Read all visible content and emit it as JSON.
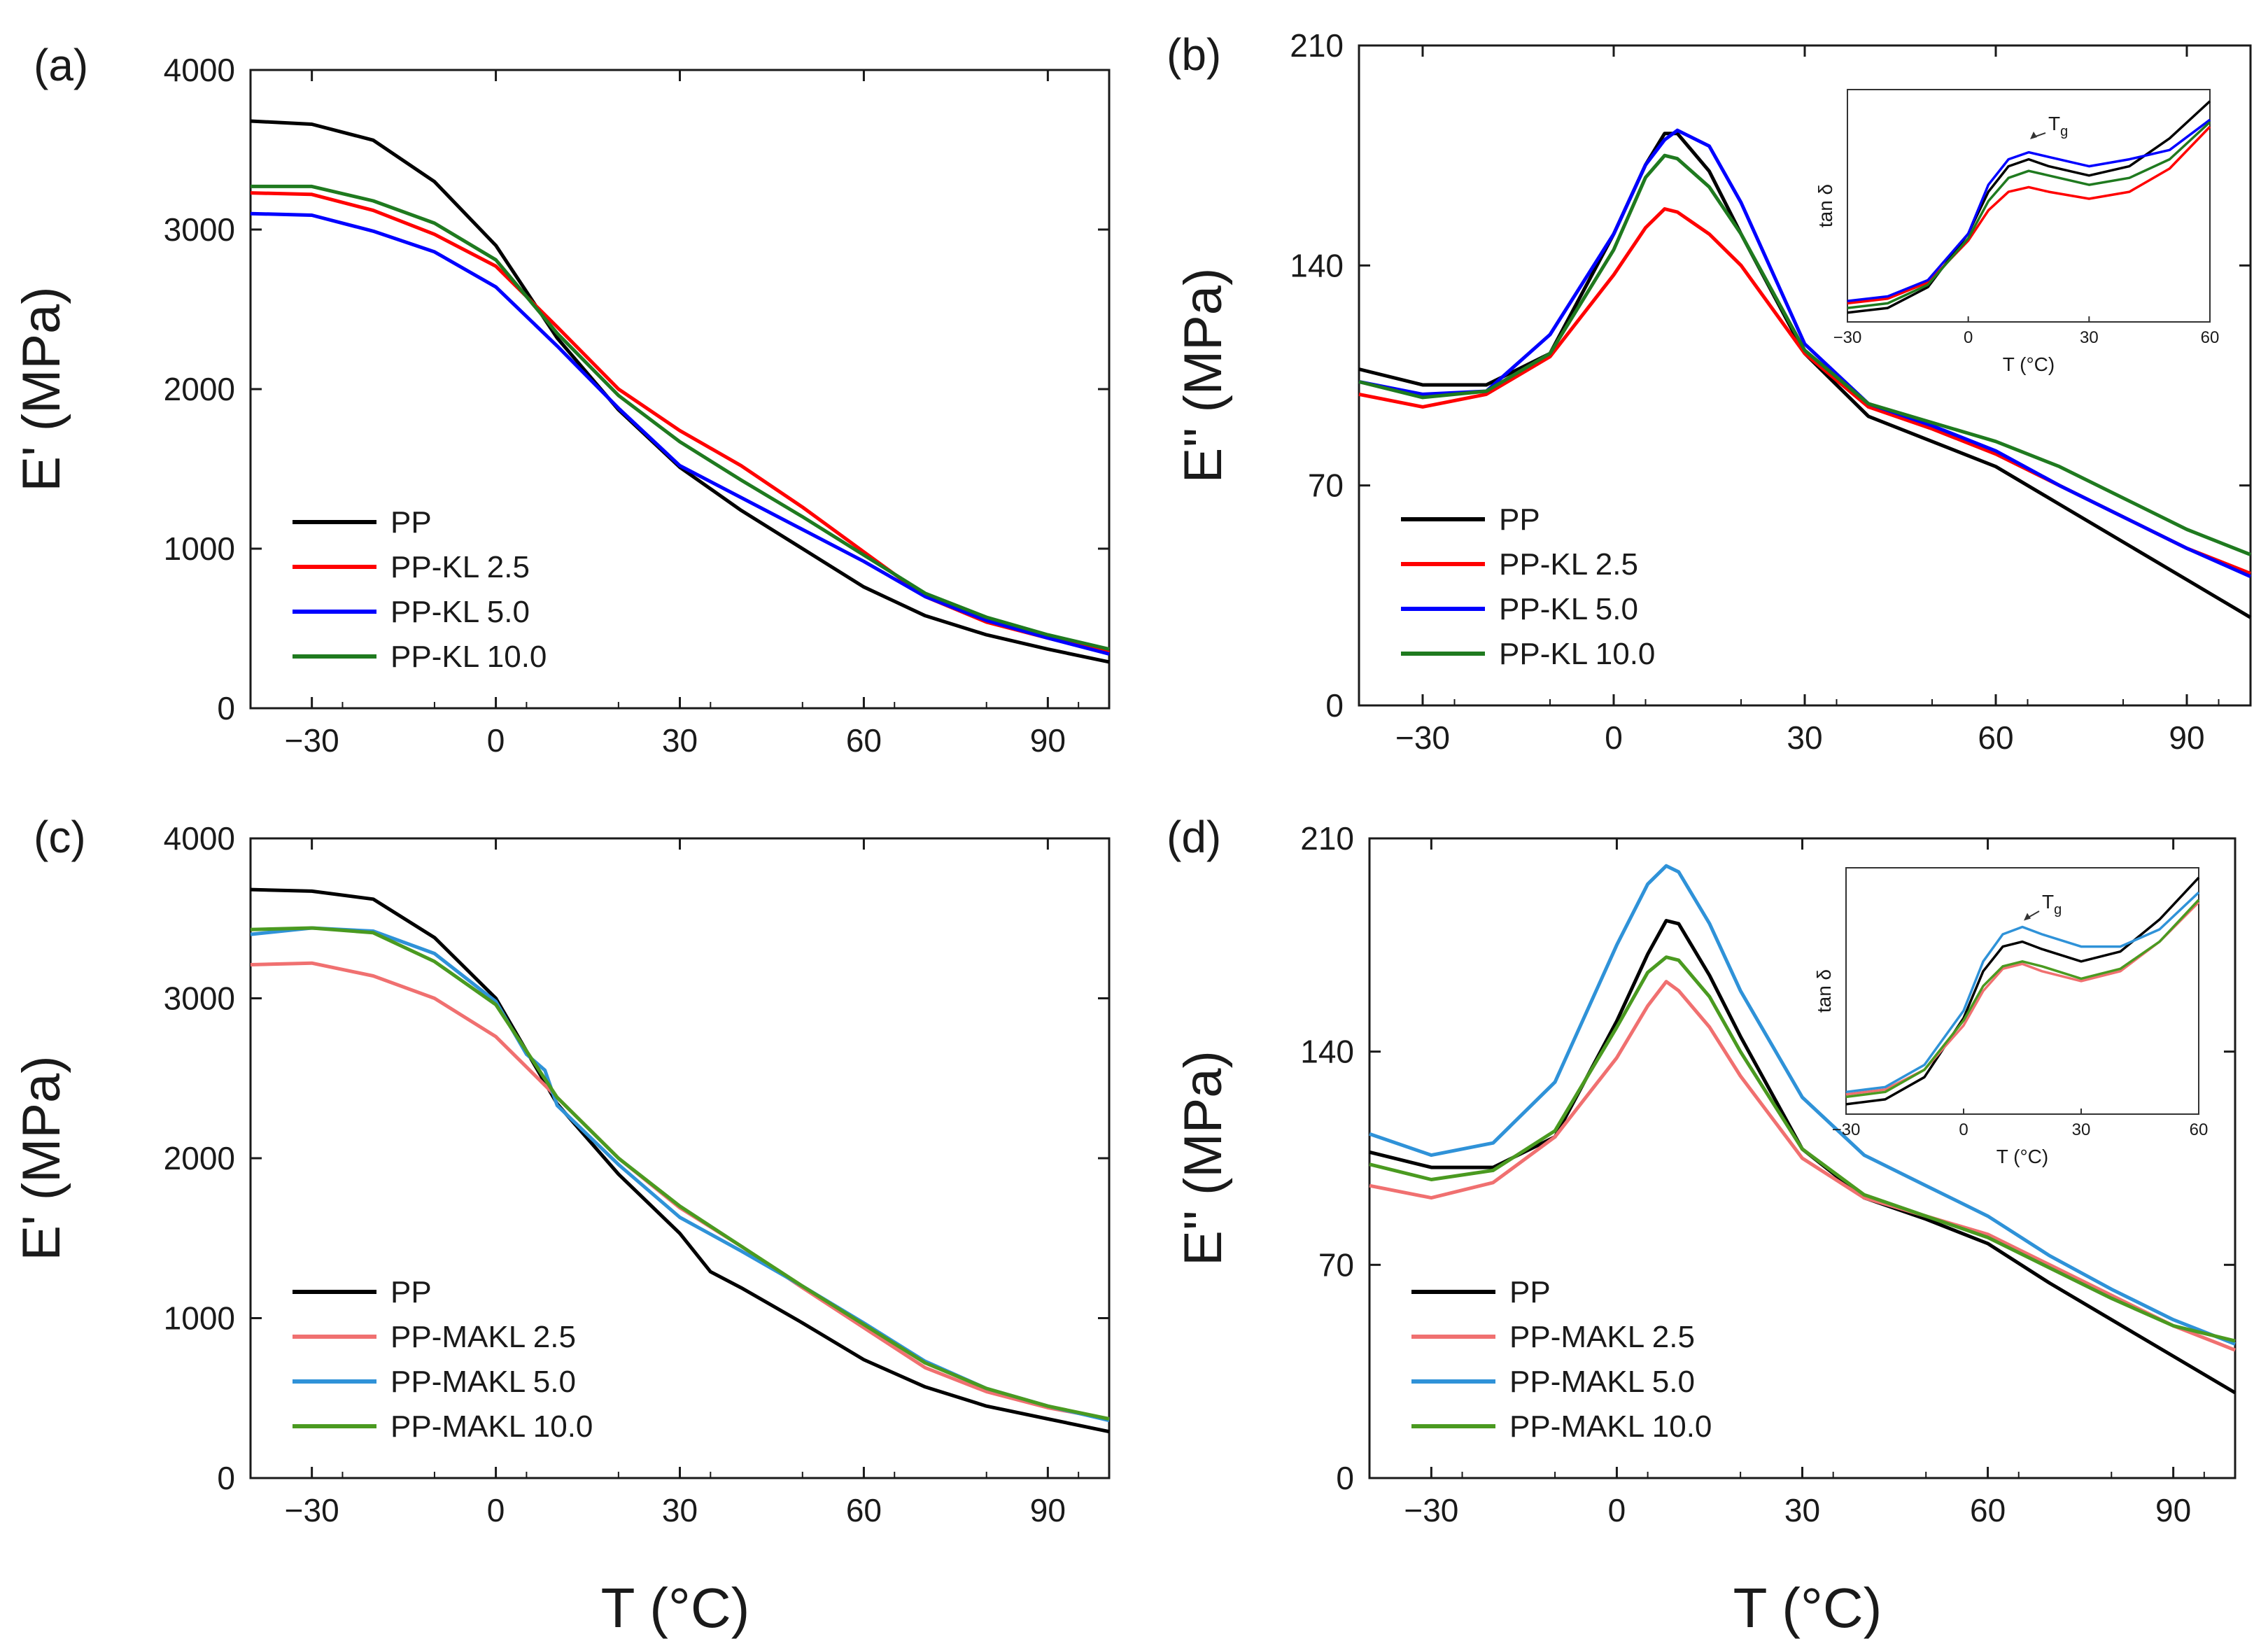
{
  "chart_data": [
    {
      "type": "line",
      "panel": "(a)",
      "ylabel": "E' (MPa)",
      "xlabel": "",
      "xlim": [
        -40,
        100
      ],
      "ylim": [
        0,
        4000
      ],
      "xticks": [
        -30,
        0,
        30,
        60,
        90
      ],
      "yticks": [
        0,
        1000,
        2000,
        3000,
        4000
      ],
      "legend_position": "bottom-left",
      "series": [
        {
          "name": "PP",
          "color": "#000000",
          "x": [
            -40,
            -30,
            -20,
            -10,
            0,
            10,
            20,
            30,
            40,
            50,
            60,
            70,
            80,
            90,
            100
          ],
          "y": [
            3680,
            3660,
            3560,
            3300,
            2900,
            2320,
            1870,
            1510,
            1240,
            1000,
            760,
            580,
            460,
            370,
            290
          ]
        },
        {
          "name": "PP-KL 2.5",
          "color": "#ff0000",
          "x": [
            -40,
            -30,
            -20,
            -10,
            0,
            10,
            20,
            30,
            40,
            50,
            60,
            70,
            80,
            90,
            100
          ],
          "y": [
            3230,
            3220,
            3120,
            2970,
            2770,
            2390,
            2000,
            1740,
            1520,
            1260,
            980,
            700,
            540,
            440,
            350
          ]
        },
        {
          "name": "PP-KL 5.0",
          "color": "#0000ff",
          "x": [
            -40,
            -30,
            -20,
            -10,
            0,
            10,
            20,
            30,
            40,
            50,
            60,
            70,
            80,
            90,
            100
          ],
          "y": [
            3100,
            3090,
            2990,
            2860,
            2640,
            2270,
            1880,
            1520,
            1320,
            1120,
            920,
            700,
            550,
            440,
            340
          ]
        },
        {
          "name": "PP-KL 10.0",
          "color": "#1f7a1f",
          "x": [
            -40,
            -30,
            -20,
            -10,
            0,
            10,
            20,
            30,
            40,
            50,
            60,
            70,
            80,
            90,
            100
          ],
          "y": [
            3270,
            3270,
            3180,
            3040,
            2810,
            2350,
            1960,
            1670,
            1430,
            1200,
            960,
            720,
            570,
            460,
            370
          ]
        }
      ]
    },
    {
      "type": "line",
      "panel": "(b)",
      "ylabel": "E'' (MPa)",
      "xlabel": "",
      "xlim": [
        -40,
        100
      ],
      "ylim": [
        0,
        210
      ],
      "xticks": [
        -30,
        0,
        30,
        60,
        90
      ],
      "yticks": [
        0,
        70,
        140,
        210
      ],
      "legend_position": "bottom-left",
      "series": [
        {
          "name": "PP",
          "color": "#000000",
          "x": [
            -40,
            -30,
            -20,
            -10,
            0,
            5,
            8,
            10,
            15,
            20,
            30,
            40,
            50,
            60,
            70,
            80,
            90,
            100
          ],
          "y": [
            107,
            102,
            102,
            112,
            150,
            172,
            182,
            182,
            170,
            150,
            112,
            92,
            84,
            76,
            64,
            52,
            40,
            28
          ]
        },
        {
          "name": "PP-KL 2.5",
          "color": "#ff0000",
          "x": [
            -40,
            -30,
            -20,
            -10,
            0,
            5,
            8,
            10,
            15,
            20,
            30,
            40,
            50,
            60,
            70,
            80,
            90,
            100
          ],
          "y": [
            99,
            95,
            99,
            111,
            137,
            152,
            158,
            157,
            150,
            140,
            112,
            95,
            88,
            80,
            70,
            60,
            50,
            42
          ]
        },
        {
          "name": "PP-KL 5.0",
          "color": "#0000ff",
          "x": [
            -40,
            -30,
            -20,
            -10,
            0,
            5,
            8,
            10,
            15,
            20,
            30,
            40,
            50,
            60,
            70,
            80,
            90,
            100
          ],
          "y": [
            103,
            99,
            100,
            118,
            150,
            172,
            180,
            183,
            178,
            160,
            115,
            96,
            89,
            81,
            70,
            60,
            50,
            41
          ]
        },
        {
          "name": "PP-KL 10.0",
          "color": "#1f7a1f",
          "x": [
            -40,
            -30,
            -20,
            -10,
            0,
            5,
            8,
            10,
            15,
            20,
            30,
            40,
            50,
            60,
            70,
            80,
            90,
            100
          ],
          "y": [
            103,
            98,
            100,
            112,
            145,
            168,
            175,
            174,
            165,
            150,
            113,
            96,
            90,
            84,
            76,
            66,
            56,
            48
          ]
        }
      ],
      "inset": {
        "ylabel": "tan δ",
        "xlabel": "T (°C)",
        "xlim": [
          -30,
          60
        ],
        "xticks": [
          -30,
          0,
          30,
          60
        ],
        "annotation": "T",
        "annotation_sub": "g",
        "series": [
          {
            "name": "PP",
            "color": "#000000",
            "x": [
              -30,
              -20,
              -10,
              0,
              5,
              10,
              15,
              20,
              30,
              40,
              50,
              60
            ],
            "y": [
              0.04,
              0.06,
              0.15,
              0.38,
              0.56,
              0.67,
              0.7,
              0.67,
              0.63,
              0.67,
              0.79,
              0.95
            ]
          },
          {
            "name": "PP-KL 2.5",
            "color": "#ff0000",
            "x": [
              -30,
              -20,
              -10,
              0,
              5,
              10,
              15,
              20,
              30,
              40,
              50,
              60
            ],
            "y": [
              0.08,
              0.1,
              0.17,
              0.35,
              0.48,
              0.56,
              0.58,
              0.56,
              0.53,
              0.56,
              0.66,
              0.84
            ]
          },
          {
            "name": "PP-KL 5.0",
            "color": "#0000ff",
            "x": [
              -30,
              -20,
              -10,
              0,
              5,
              10,
              15,
              20,
              30,
              40,
              50,
              60
            ],
            "y": [
              0.09,
              0.11,
              0.18,
              0.38,
              0.59,
              0.7,
              0.73,
              0.71,
              0.67,
              0.7,
              0.74,
              0.87
            ]
          },
          {
            "name": "PP-KL 10.0",
            "color": "#1f7a1f",
            "x": [
              -30,
              -20,
              -10,
              0,
              5,
              10,
              15,
              20,
              30,
              40,
              50,
              60
            ],
            "y": [
              0.06,
              0.08,
              0.16,
              0.36,
              0.52,
              0.62,
              0.65,
              0.63,
              0.59,
              0.62,
              0.7,
              0.86
            ]
          }
        ]
      }
    },
    {
      "type": "line",
      "panel": "(c)",
      "ylabel": "E' (MPa)",
      "xlabel": "T (°C)",
      "xlim": [
        -40,
        100
      ],
      "ylim": [
        0,
        4000
      ],
      "xticks": [
        -30,
        0,
        30,
        60,
        90
      ],
      "yticks": [
        0,
        1000,
        2000,
        3000,
        4000
      ],
      "legend_position": "bottom-left",
      "series": [
        {
          "name": "PP",
          "color": "#000000",
          "x": [
            -40,
            -30,
            -20,
            -10,
            0,
            10,
            20,
            30,
            35,
            40,
            50,
            60,
            70,
            80,
            90,
            100
          ],
          "y": [
            3680,
            3670,
            3620,
            3380,
            3000,
            2340,
            1900,
            1530,
            1290,
            1190,
            970,
            740,
            570,
            450,
            370,
            290
          ]
        },
        {
          "name": "PP-MAKL 2.5",
          "color": "#f07070",
          "x": [
            -40,
            -30,
            -20,
            -10,
            0,
            10,
            20,
            30,
            40,
            50,
            60,
            70,
            80,
            90,
            100
          ],
          "y": [
            3210,
            3220,
            3140,
            3000,
            2760,
            2380,
            2000,
            1690,
            1450,
            1190,
            940,
            690,
            540,
            440,
            370
          ]
        },
        {
          "name": "PP-MAKL 5.0",
          "color": "#2f92d8",
          "x": [
            -40,
            -30,
            -20,
            -10,
            0,
            5,
            8,
            10,
            20,
            30,
            40,
            50,
            60,
            70,
            80,
            90,
            100
          ],
          "y": [
            3400,
            3440,
            3420,
            3280,
            2980,
            2650,
            2550,
            2330,
            1960,
            1630,
            1420,
            1200,
            970,
            730,
            560,
            450,
            360
          ]
        },
        {
          "name": "PP-MAKL 10.0",
          "color": "#4a9a20",
          "x": [
            -40,
            -30,
            -20,
            -10,
            0,
            10,
            20,
            30,
            40,
            50,
            60,
            70,
            80,
            90,
            100
          ],
          "y": [
            3430,
            3440,
            3410,
            3230,
            2960,
            2380,
            2000,
            1700,
            1450,
            1200,
            960,
            720,
            560,
            450,
            370
          ]
        }
      ]
    },
    {
      "type": "line",
      "panel": "(d)",
      "ylabel": "E'' (MPa)",
      "xlabel": "T (°C)",
      "xlim": [
        -40,
        100
      ],
      "ylim": [
        0,
        210
      ],
      "xticks": [
        -30,
        0,
        30,
        60,
        90
      ],
      "yticks": [
        0,
        70,
        140,
        210
      ],
      "legend_position": "bottom-left",
      "series": [
        {
          "name": "PP",
          "color": "#000000",
          "x": [
            -40,
            -30,
            -20,
            -10,
            0,
            5,
            8,
            10,
            15,
            20,
            30,
            40,
            50,
            60,
            70,
            80,
            90,
            100
          ],
          "y": [
            107,
            102,
            102,
            112,
            150,
            172,
            183,
            182,
            165,
            145,
            108,
            92,
            85,
            77,
            64,
            52,
            40,
            28
          ]
        },
        {
          "name": "PP-MAKL 2.5",
          "color": "#f07070",
          "x": [
            -40,
            -30,
            -20,
            -10,
            0,
            5,
            8,
            10,
            15,
            20,
            30,
            40,
            50,
            60,
            70,
            80,
            90,
            100
          ],
          "y": [
            96,
            92,
            97,
            112,
            138,
            155,
            163,
            160,
            148,
            132,
            105,
            92,
            86,
            80,
            70,
            60,
            50,
            42
          ]
        },
        {
          "name": "PP-MAKL 5.0",
          "color": "#2f92d8",
          "x": [
            -40,
            -30,
            -20,
            -10,
            0,
            5,
            8,
            10,
            15,
            20,
            30,
            40,
            50,
            60,
            70,
            80,
            90,
            100
          ],
          "y": [
            113,
            106,
            110,
            130,
            175,
            195,
            201,
            199,
            182,
            160,
            125,
            106,
            96,
            86,
            73,
            62,
            52,
            44
          ]
        },
        {
          "name": "PP-MAKL 10.0",
          "color": "#4a9a20",
          "x": [
            -40,
            -30,
            -20,
            -10,
            0,
            5,
            8,
            10,
            15,
            20,
            30,
            40,
            50,
            60,
            70,
            80,
            90,
            100
          ],
          "y": [
            103,
            98,
            101,
            114,
            148,
            166,
            171,
            170,
            158,
            140,
            108,
            93,
            86,
            79,
            69,
            59,
            50,
            45
          ]
        }
      ],
      "inset": {
        "ylabel": "tan δ",
        "xlabel": "T (°C)",
        "xlim": [
          -30,
          60
        ],
        "xticks": [
          -30,
          0,
          30,
          60
        ],
        "annotation": "T",
        "annotation_sub": "g",
        "series": [
          {
            "name": "PP",
            "color": "#000000",
            "x": [
              -30,
              -20,
              -10,
              0,
              5,
              10,
              15,
              20,
              30,
              40,
              50,
              60
            ],
            "y": [
              0.04,
              0.06,
              0.15,
              0.39,
              0.58,
              0.68,
              0.7,
              0.67,
              0.62,
              0.66,
              0.79,
              0.96
            ]
          },
          {
            "name": "PP-MAKL 2.5",
            "color": "#f07070",
            "x": [
              -30,
              -20,
              -10,
              0,
              5,
              10,
              15,
              20,
              30,
              40,
              50,
              60
            ],
            "y": [
              0.08,
              0.1,
              0.18,
              0.36,
              0.5,
              0.59,
              0.61,
              0.58,
              0.54,
              0.58,
              0.7,
              0.86
            ]
          },
          {
            "name": "PP-MAKL 5.0",
            "color": "#2f92d8",
            "x": [
              -30,
              -20,
              -10,
              0,
              5,
              10,
              15,
              20,
              30,
              40,
              50,
              60
            ],
            "y": [
              0.09,
              0.11,
              0.2,
              0.42,
              0.62,
              0.73,
              0.76,
              0.73,
              0.68,
              0.68,
              0.75,
              0.9
            ]
          },
          {
            "name": "PP-MAKL 10.0",
            "color": "#4a9a20",
            "x": [
              -30,
              -20,
              -10,
              0,
              5,
              10,
              15,
              20,
              30,
              40,
              50,
              60
            ],
            "y": [
              0.07,
              0.09,
              0.18,
              0.38,
              0.52,
              0.6,
              0.62,
              0.6,
              0.55,
              0.59,
              0.7,
              0.87
            ]
          }
        ]
      }
    }
  ]
}
